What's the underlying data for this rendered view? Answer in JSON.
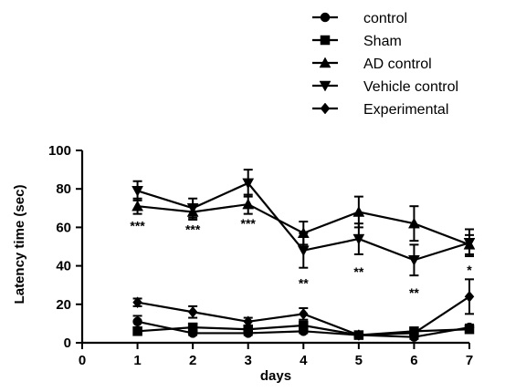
{
  "chart_data": {
    "type": "line",
    "title": "",
    "xlabel": "days",
    "ylabel": "Latency time (sec)",
    "xlim": [
      0,
      7
    ],
    "ylim": [
      0,
      100
    ],
    "xticks": [
      0,
      1,
      2,
      3,
      4,
      5,
      6,
      7
    ],
    "yticks": [
      0,
      20,
      40,
      60,
      80,
      100
    ],
    "grid": false,
    "legend_position": "top-right",
    "x": [
      1,
      2,
      3,
      4,
      5,
      6,
      7
    ],
    "series": [
      {
        "name": "control",
        "marker": "circle",
        "values": [
          11,
          5,
          5,
          6,
          4,
          3,
          8
        ],
        "errors": [
          3,
          1,
          1,
          1,
          1,
          1,
          1.5
        ]
      },
      {
        "name": "Sham",
        "marker": "square",
        "values": [
          6,
          8,
          7,
          9,
          4,
          6,
          7
        ],
        "errors": [
          1,
          2,
          2,
          2,
          1,
          1,
          1
        ]
      },
      {
        "name": "AD control",
        "marker": "triangle-up",
        "values": [
          71,
          68,
          72,
          57,
          68,
          62,
          51
        ],
        "errors": [
          4,
          4,
          5,
          6,
          8,
          9,
          5
        ]
      },
      {
        "name": "Vehicle control",
        "marker": "triangle-down",
        "values": [
          79,
          70,
          83,
          48,
          54,
          43,
          52
        ],
        "errors": [
          5,
          5,
          7,
          9,
          8,
          8,
          7
        ]
      },
      {
        "name": "Experimental",
        "marker": "diamond",
        "values": [
          21,
          16,
          11,
          15,
          4,
          5,
          24
        ],
        "errors": [
          2,
          3,
          2,
          3,
          1,
          1,
          9
        ]
      }
    ],
    "annotations": [
      {
        "x": 1,
        "y": 61,
        "text": "***"
      },
      {
        "x": 2,
        "y": 59,
        "text": "***"
      },
      {
        "x": 3,
        "y": 62,
        "text": "***"
      },
      {
        "x": 4,
        "y": 31,
        "text": "**"
      },
      {
        "x": 5,
        "y": 37,
        "text": "**"
      },
      {
        "x": 6,
        "y": 26,
        "text": "**"
      },
      {
        "x": 7,
        "y": 38,
        "text": "*"
      }
    ]
  }
}
